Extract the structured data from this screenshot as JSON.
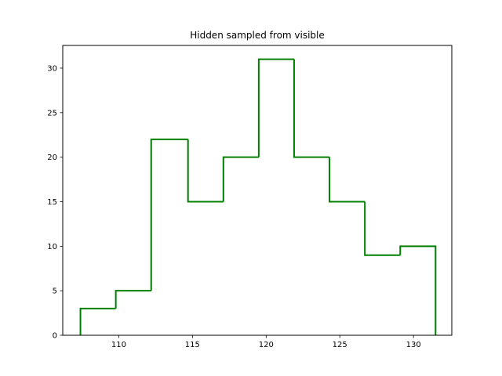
{
  "chart_data": {
    "type": "histogram-step",
    "title": "Hidden sampled from visible",
    "xlabel": "",
    "ylabel": "",
    "xlim": [
      106.2,
      132.6
    ],
    "ylim": [
      0,
      32.55
    ],
    "grid": false,
    "line_color": "#008000",
    "bin_edges": [
      107.4,
      109.8,
      112.2,
      114.7,
      117.1,
      119.5,
      121.9,
      124.3,
      126.7,
      129.1,
      131.5
    ],
    "counts": [
      3,
      5,
      22,
      15,
      20,
      31,
      20,
      15,
      9,
      10
    ],
    "x_ticks": [
      110,
      115,
      120,
      125,
      130
    ],
    "y_ticks": [
      0,
      5,
      10,
      15,
      20,
      25,
      30
    ]
  }
}
